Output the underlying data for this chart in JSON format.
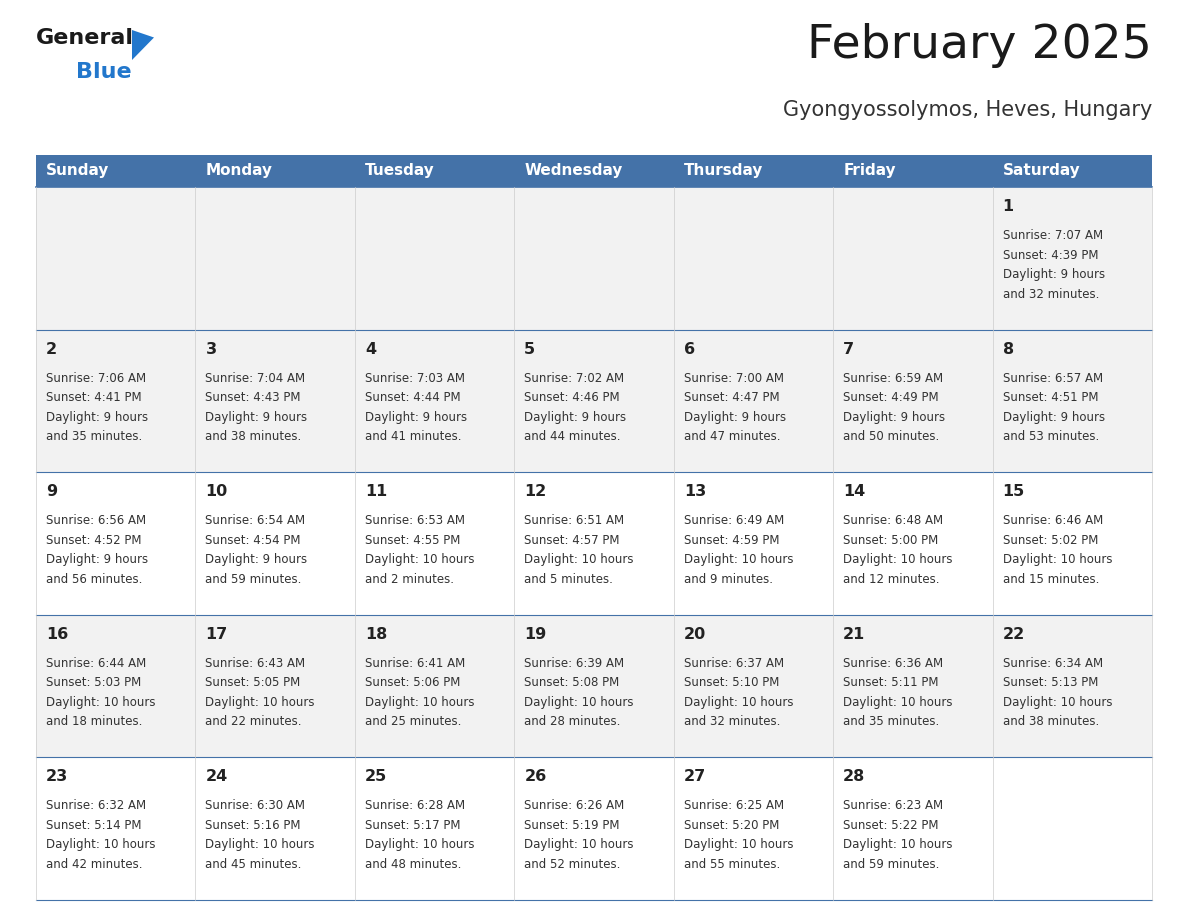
{
  "title": "February 2025",
  "subtitle": "Gyongyossolymos, Heves, Hungary",
  "days_of_week": [
    "Sunday",
    "Monday",
    "Tuesday",
    "Wednesday",
    "Thursday",
    "Friday",
    "Saturday"
  ],
  "header_bg": "#4472A8",
  "header_text": "#FFFFFF",
  "cell_bg_odd": "#F2F2F2",
  "cell_bg_even": "#FFFFFF",
  "border_color": "#4472A8",
  "day_number_color": "#222222",
  "text_color": "#333333",
  "title_color": "#1a1a1a",
  "subtitle_color": "#333333",
  "logo_general_color": "#1a1a1a",
  "logo_blue_color": "#2277CC",
  "calendar_data": [
    {
      "day": 1,
      "col": 6,
      "row": 0,
      "sunrise": "7:07 AM",
      "sunset": "4:39 PM",
      "daylight": "9 hours\nand 32 minutes."
    },
    {
      "day": 2,
      "col": 0,
      "row": 1,
      "sunrise": "7:06 AM",
      "sunset": "4:41 PM",
      "daylight": "9 hours\nand 35 minutes."
    },
    {
      "day": 3,
      "col": 1,
      "row": 1,
      "sunrise": "7:04 AM",
      "sunset": "4:43 PM",
      "daylight": "9 hours\nand 38 minutes."
    },
    {
      "day": 4,
      "col": 2,
      "row": 1,
      "sunrise": "7:03 AM",
      "sunset": "4:44 PM",
      "daylight": "9 hours\nand 41 minutes."
    },
    {
      "day": 5,
      "col": 3,
      "row": 1,
      "sunrise": "7:02 AM",
      "sunset": "4:46 PM",
      "daylight": "9 hours\nand 44 minutes."
    },
    {
      "day": 6,
      "col": 4,
      "row": 1,
      "sunrise": "7:00 AM",
      "sunset": "4:47 PM",
      "daylight": "9 hours\nand 47 minutes."
    },
    {
      "day": 7,
      "col": 5,
      "row": 1,
      "sunrise": "6:59 AM",
      "sunset": "4:49 PM",
      "daylight": "9 hours\nand 50 minutes."
    },
    {
      "day": 8,
      "col": 6,
      "row": 1,
      "sunrise": "6:57 AM",
      "sunset": "4:51 PM",
      "daylight": "9 hours\nand 53 minutes."
    },
    {
      "day": 9,
      "col": 0,
      "row": 2,
      "sunrise": "6:56 AM",
      "sunset": "4:52 PM",
      "daylight": "9 hours\nand 56 minutes."
    },
    {
      "day": 10,
      "col": 1,
      "row": 2,
      "sunrise": "6:54 AM",
      "sunset": "4:54 PM",
      "daylight": "9 hours\nand 59 minutes."
    },
    {
      "day": 11,
      "col": 2,
      "row": 2,
      "sunrise": "6:53 AM",
      "sunset": "4:55 PM",
      "daylight": "10 hours\nand 2 minutes."
    },
    {
      "day": 12,
      "col": 3,
      "row": 2,
      "sunrise": "6:51 AM",
      "sunset": "4:57 PM",
      "daylight": "10 hours\nand 5 minutes."
    },
    {
      "day": 13,
      "col": 4,
      "row": 2,
      "sunrise": "6:49 AM",
      "sunset": "4:59 PM",
      "daylight": "10 hours\nand 9 minutes."
    },
    {
      "day": 14,
      "col": 5,
      "row": 2,
      "sunrise": "6:48 AM",
      "sunset": "5:00 PM",
      "daylight": "10 hours\nand 12 minutes."
    },
    {
      "day": 15,
      "col": 6,
      "row": 2,
      "sunrise": "6:46 AM",
      "sunset": "5:02 PM",
      "daylight": "10 hours\nand 15 minutes."
    },
    {
      "day": 16,
      "col": 0,
      "row": 3,
      "sunrise": "6:44 AM",
      "sunset": "5:03 PM",
      "daylight": "10 hours\nand 18 minutes."
    },
    {
      "day": 17,
      "col": 1,
      "row": 3,
      "sunrise": "6:43 AM",
      "sunset": "5:05 PM",
      "daylight": "10 hours\nand 22 minutes."
    },
    {
      "day": 18,
      "col": 2,
      "row": 3,
      "sunrise": "6:41 AM",
      "sunset": "5:06 PM",
      "daylight": "10 hours\nand 25 minutes."
    },
    {
      "day": 19,
      "col": 3,
      "row": 3,
      "sunrise": "6:39 AM",
      "sunset": "5:08 PM",
      "daylight": "10 hours\nand 28 minutes."
    },
    {
      "day": 20,
      "col": 4,
      "row": 3,
      "sunrise": "6:37 AM",
      "sunset": "5:10 PM",
      "daylight": "10 hours\nand 32 minutes."
    },
    {
      "day": 21,
      "col": 5,
      "row": 3,
      "sunrise": "6:36 AM",
      "sunset": "5:11 PM",
      "daylight": "10 hours\nand 35 minutes."
    },
    {
      "day": 22,
      "col": 6,
      "row": 3,
      "sunrise": "6:34 AM",
      "sunset": "5:13 PM",
      "daylight": "10 hours\nand 38 minutes."
    },
    {
      "day": 23,
      "col": 0,
      "row": 4,
      "sunrise": "6:32 AM",
      "sunset": "5:14 PM",
      "daylight": "10 hours\nand 42 minutes."
    },
    {
      "day": 24,
      "col": 1,
      "row": 4,
      "sunrise": "6:30 AM",
      "sunset": "5:16 PM",
      "daylight": "10 hours\nand 45 minutes."
    },
    {
      "day": 25,
      "col": 2,
      "row": 4,
      "sunrise": "6:28 AM",
      "sunset": "5:17 PM",
      "daylight": "10 hours\nand 48 minutes."
    },
    {
      "day": 26,
      "col": 3,
      "row": 4,
      "sunrise": "6:26 AM",
      "sunset": "5:19 PM",
      "daylight": "10 hours\nand 52 minutes."
    },
    {
      "day": 27,
      "col": 4,
      "row": 4,
      "sunrise": "6:25 AM",
      "sunset": "5:20 PM",
      "daylight": "10 hours\nand 55 minutes."
    },
    {
      "day": 28,
      "col": 5,
      "row": 4,
      "sunrise": "6:23 AM",
      "sunset": "5:22 PM",
      "daylight": "10 hours\nand 59 minutes."
    }
  ],
  "num_rows": 5,
  "num_cols": 7
}
